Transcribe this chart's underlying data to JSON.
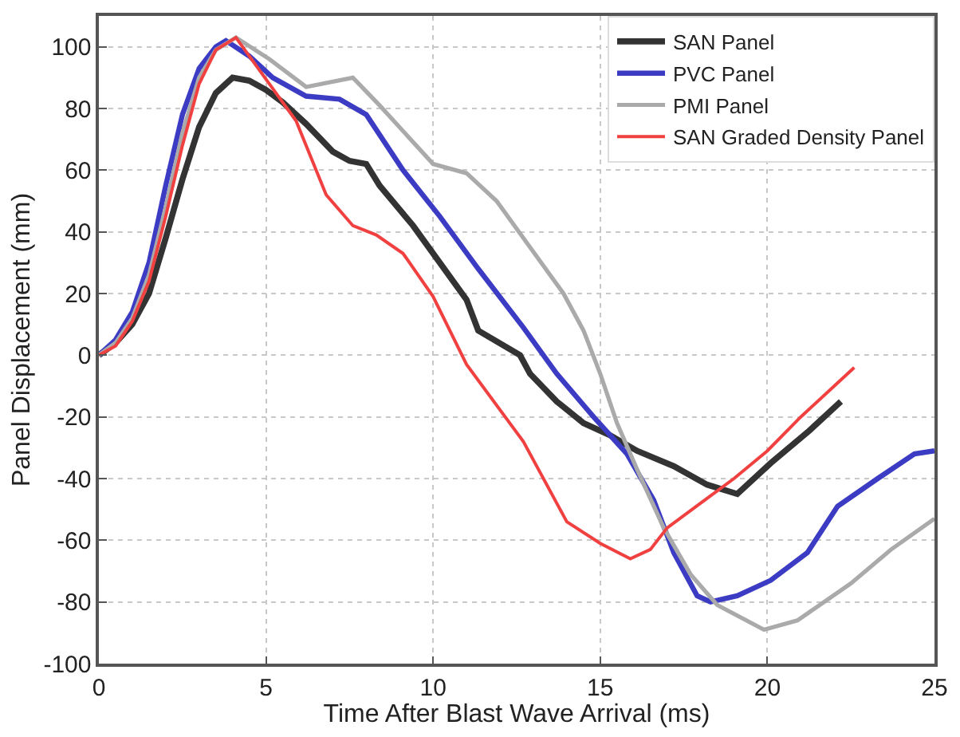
{
  "chart_data": {
    "type": "line",
    "xlabel": "Time After Blast Wave Arrival (ms)",
    "ylabel": "Panel Displacement (mm)",
    "xlim": [
      0,
      25
    ],
    "xticks": [
      0,
      5,
      10,
      15,
      20,
      25
    ],
    "ylim": [
      -100,
      110
    ],
    "yticks": [
      -100,
      -80,
      -60,
      -40,
      -20,
      0,
      20,
      40,
      60,
      80,
      100
    ],
    "grid": true,
    "legend": "top right",
    "line_style": "solid",
    "marker": "none",
    "series": [
      {
        "name": "SAN Panel",
        "color": "#333333",
        "x": [
          0,
          0.5,
          1,
          1.5,
          2,
          2.5,
          3,
          3.5,
          4,
          4.5,
          5,
          5.5,
          6.2,
          7,
          7.5,
          8,
          8.4,
          9.4,
          11,
          11.35,
          12.6,
          12.9,
          13.7,
          14.5,
          15.3,
          16.1,
          17.2,
          18.2,
          19.1,
          20.1,
          21.2,
          22.2
        ],
        "values": [
          0,
          4,
          10,
          20,
          38,
          57,
          74,
          85,
          90,
          89,
          86,
          82,
          75,
          66,
          63,
          62,
          55,
          42,
          18,
          8,
          0,
          -6,
          -15,
          -22,
          -26,
          -31,
          -36,
          -42,
          -45,
          -35,
          -25,
          -15
        ]
      },
      {
        "name": "PVC Panel",
        "color": "#3b3bc4",
        "x": [
          0,
          0.5,
          1,
          1.5,
          2,
          2.5,
          3,
          3.5,
          3.8,
          4.5,
          5.2,
          6.2,
          7.2,
          8,
          9.1,
          10.2,
          11.35,
          12.7,
          13.7,
          14.8,
          15.8,
          16.6,
          17.2,
          17.9,
          18.3,
          19.1,
          20.1,
          21.2,
          22.1,
          23.3,
          24.4,
          25
        ],
        "values": [
          0,
          5,
          14,
          30,
          55,
          78,
          93,
          100,
          102,
          97,
          90,
          84,
          83,
          78,
          60,
          45,
          28,
          9,
          -6,
          -20,
          -32,
          -47,
          -64,
          -78,
          -80,
          -78,
          -73,
          -64,
          -49,
          -40,
          -32,
          -31
        ]
      },
      {
        "name": "PMI Panel",
        "color": "#aaaaaa",
        "x": [
          0,
          0.5,
          1,
          1.5,
          2,
          2.5,
          3,
          3.5,
          4.1,
          5.1,
          6.2,
          7.6,
          8.4,
          10,
          11,
          11.9,
          12.9,
          13.9,
          14.5,
          15,
          15.5,
          16.1,
          16.9,
          17.7,
          18.5,
          19.9,
          20.9,
          22.5,
          23.7,
          25
        ],
        "values": [
          0,
          4,
          12,
          26,
          48,
          72,
          90,
          99,
          103,
          96,
          87,
          90,
          81,
          62,
          59,
          50,
          35,
          20,
          8,
          -6,
          -22,
          -37,
          -56,
          -71,
          -81,
          -89,
          -86,
          -74,
          -63,
          -53
        ]
      },
      {
        "name": "SAN Graded Density Panel",
        "color": "#f04040",
        "x": [
          0,
          0.5,
          1,
          1.5,
          2,
          2.5,
          3,
          3.5,
          4.1,
          5.1,
          5.9,
          6.8,
          7.6,
          8.3,
          9.1,
          10,
          11,
          12.7,
          14,
          15,
          15.9,
          16.5,
          17,
          18,
          19,
          20,
          21,
          22,
          22.6
        ],
        "values": [
          0,
          3,
          11,
          24,
          45,
          68,
          88,
          99,
          103,
          88,
          76,
          52,
          42,
          39,
          33,
          19,
          -3,
          -28,
          -54,
          -61,
          -66,
          -63,
          -56,
          -48,
          -40,
          -31,
          -20,
          -10,
          -4
        ]
      }
    ]
  }
}
